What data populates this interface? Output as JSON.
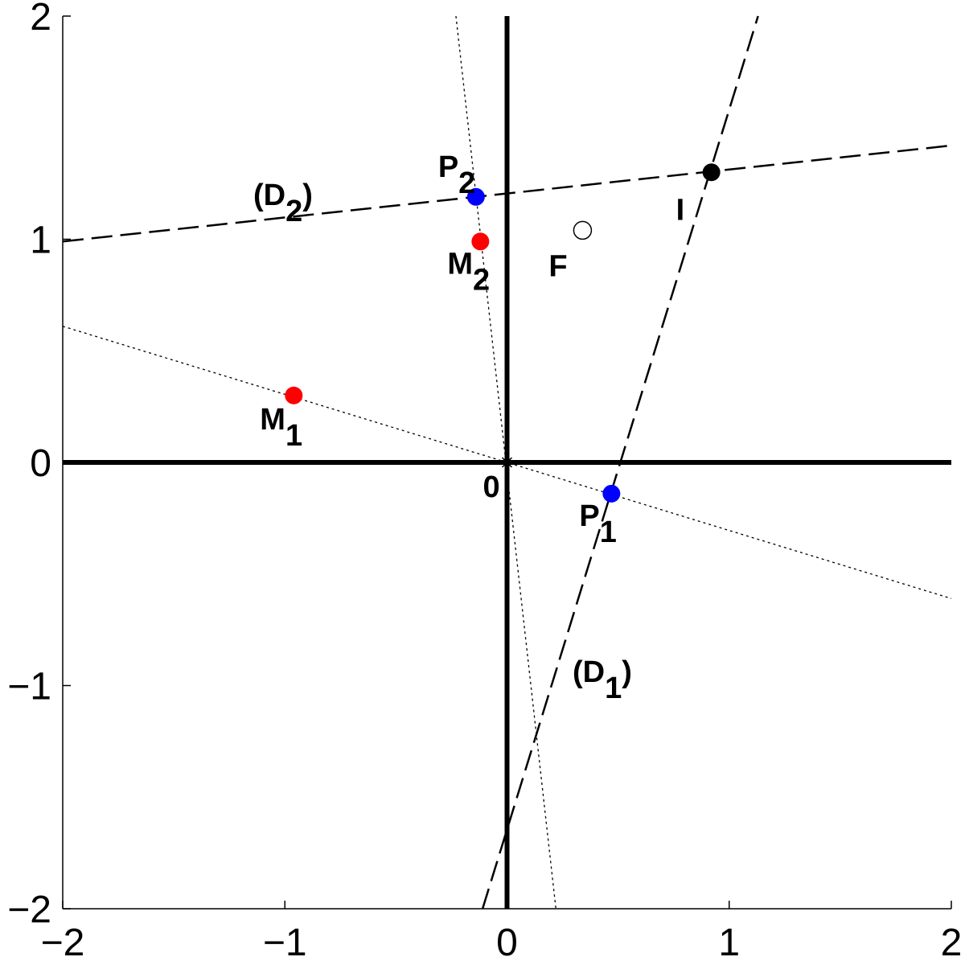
{
  "chart_data": {
    "type": "scatter",
    "xlim": [
      -2,
      2
    ],
    "ylim": [
      -2,
      2
    ],
    "xticks": [
      {
        "value": -2,
        "label": "−2"
      },
      {
        "value": -1,
        "label": "−1"
      },
      0,
      1,
      2
    ],
    "yticks": [
      {
        "value": -2,
        "label": "−2"
      },
      {
        "value": -1,
        "label": "−1"
      },
      0,
      1,
      2
    ],
    "points": [
      {
        "label": "M",
        "sub": "1",
        "x": -0.96,
        "y": 0.3,
        "color": "#ff0000",
        "marker": "filled"
      },
      {
        "label": "M",
        "sub": "2",
        "x": -0.12,
        "y": 0.99,
        "color": "#ff0000",
        "marker": "filled"
      },
      {
        "label": "P",
        "sub": "1",
        "x": 0.47,
        "y": -0.14,
        "color": "#0000ff",
        "marker": "filled"
      },
      {
        "label": "P",
        "sub": "2",
        "x": -0.14,
        "y": 1.19,
        "color": "#0000ff",
        "marker": "filled"
      },
      {
        "label": "I",
        "x": 0.92,
        "y": 1.3,
        "color": "#000000",
        "marker": "filled"
      },
      {
        "label": "F",
        "x": 0.34,
        "y": 1.04,
        "color": "#000000",
        "marker": "open"
      },
      {
        "label": "0",
        "x": 0,
        "y": 0,
        "color": "#000000",
        "marker": "star"
      }
    ],
    "lines": [
      {
        "label": "(D",
        "sub": "1",
        "suffix": ")",
        "x": [
          -0.11,
          1.13
        ],
        "y": [
          -2,
          2
        ],
        "style": "dashed"
      },
      {
        "label": "(D",
        "sub": "2",
        "suffix": ")",
        "x": [
          -2,
          2
        ],
        "y": [
          0.99,
          1.42
        ],
        "style": "dashed"
      },
      {
        "x": [
          -2,
          2
        ],
        "y": [
          0.61,
          -0.61
        ],
        "style": "dotted"
      },
      {
        "x": [
          -0.23,
          0.22
        ],
        "y": [
          2,
          -2
        ],
        "style": "dotted"
      }
    ]
  }
}
